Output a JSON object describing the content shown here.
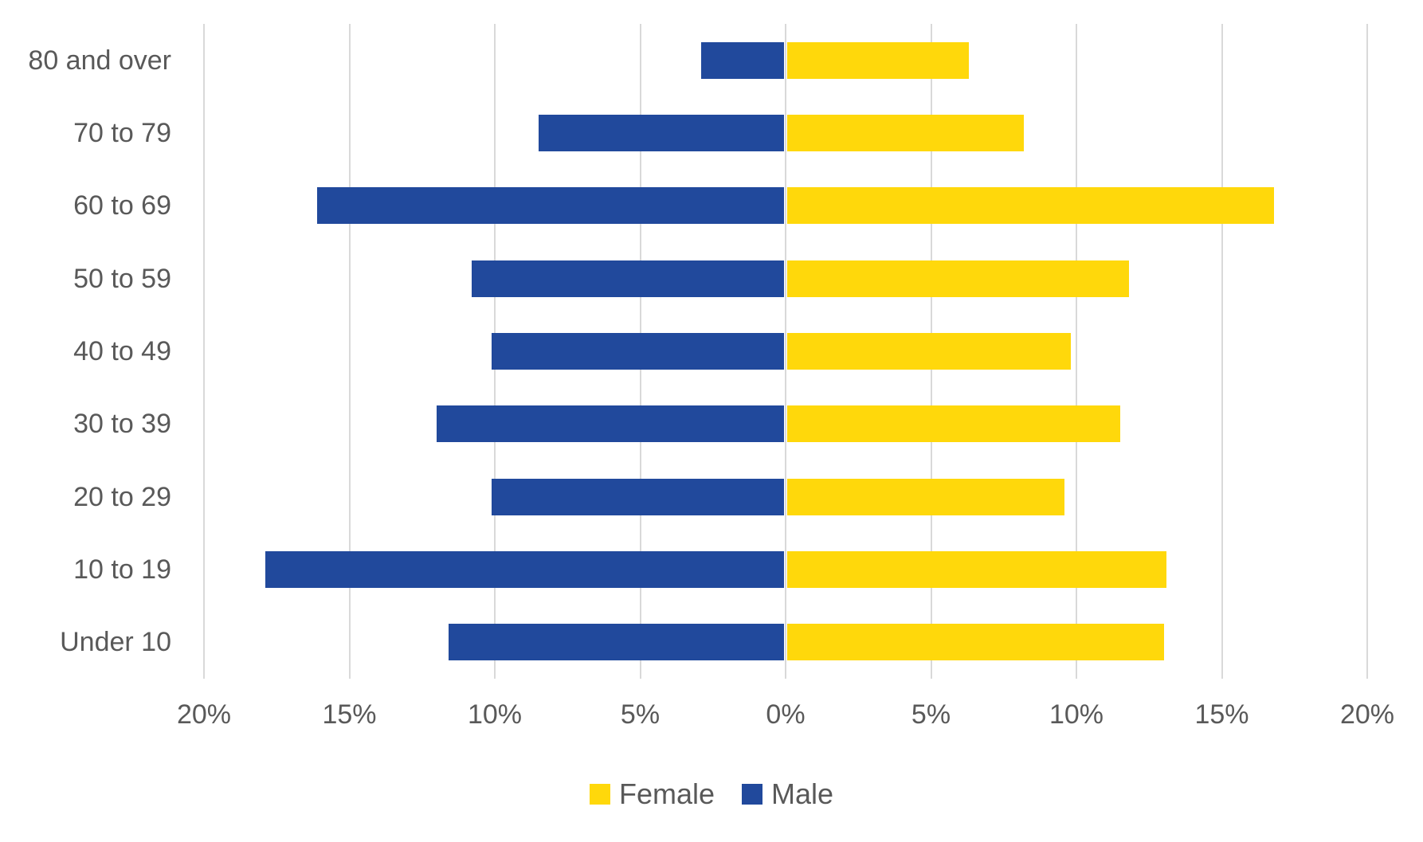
{
  "chart_data": {
    "type": "bar",
    "variant": "population-pyramid",
    "orientation": "horizontal-diverging",
    "categories": [
      "80 and over",
      "70 to 79",
      "60 to 69",
      "50 to 59",
      "40 to 49",
      "30 to 39",
      "20 to 29",
      "10 to 19",
      "Under 10"
    ],
    "series": [
      {
        "name": "Female",
        "side": "right",
        "color": "#FFD80B",
        "values": [
          6.3,
          8.2,
          16.8,
          11.8,
          9.8,
          11.5,
          9.6,
          13.1,
          13.0
        ]
      },
      {
        "name": "Male",
        "side": "left",
        "color": "#21499C",
        "values": [
          2.9,
          8.5,
          16.1,
          10.8,
          10.1,
          12.0,
          10.1,
          17.9,
          11.6
        ]
      }
    ],
    "x_axis": {
      "unit": "%",
      "min": -20,
      "max": 20,
      "tick_values": [
        -20,
        -15,
        -10,
        -5,
        0,
        5,
        10,
        15,
        20
      ],
      "ticks": [
        "20%",
        "15%",
        "10%",
        "5%",
        "0%",
        "5%",
        "10%",
        "15%",
        "20%"
      ]
    },
    "grid": true,
    "legend": {
      "position": "bottom",
      "entries": [
        {
          "label": "Female",
          "color": "#FFD80B"
        },
        {
          "label": "Male",
          "color": "#21499C"
        }
      ]
    },
    "colors": {
      "text": "#595959",
      "gridline": "#D9D9D9",
      "background": "#FFFFFF"
    }
  }
}
